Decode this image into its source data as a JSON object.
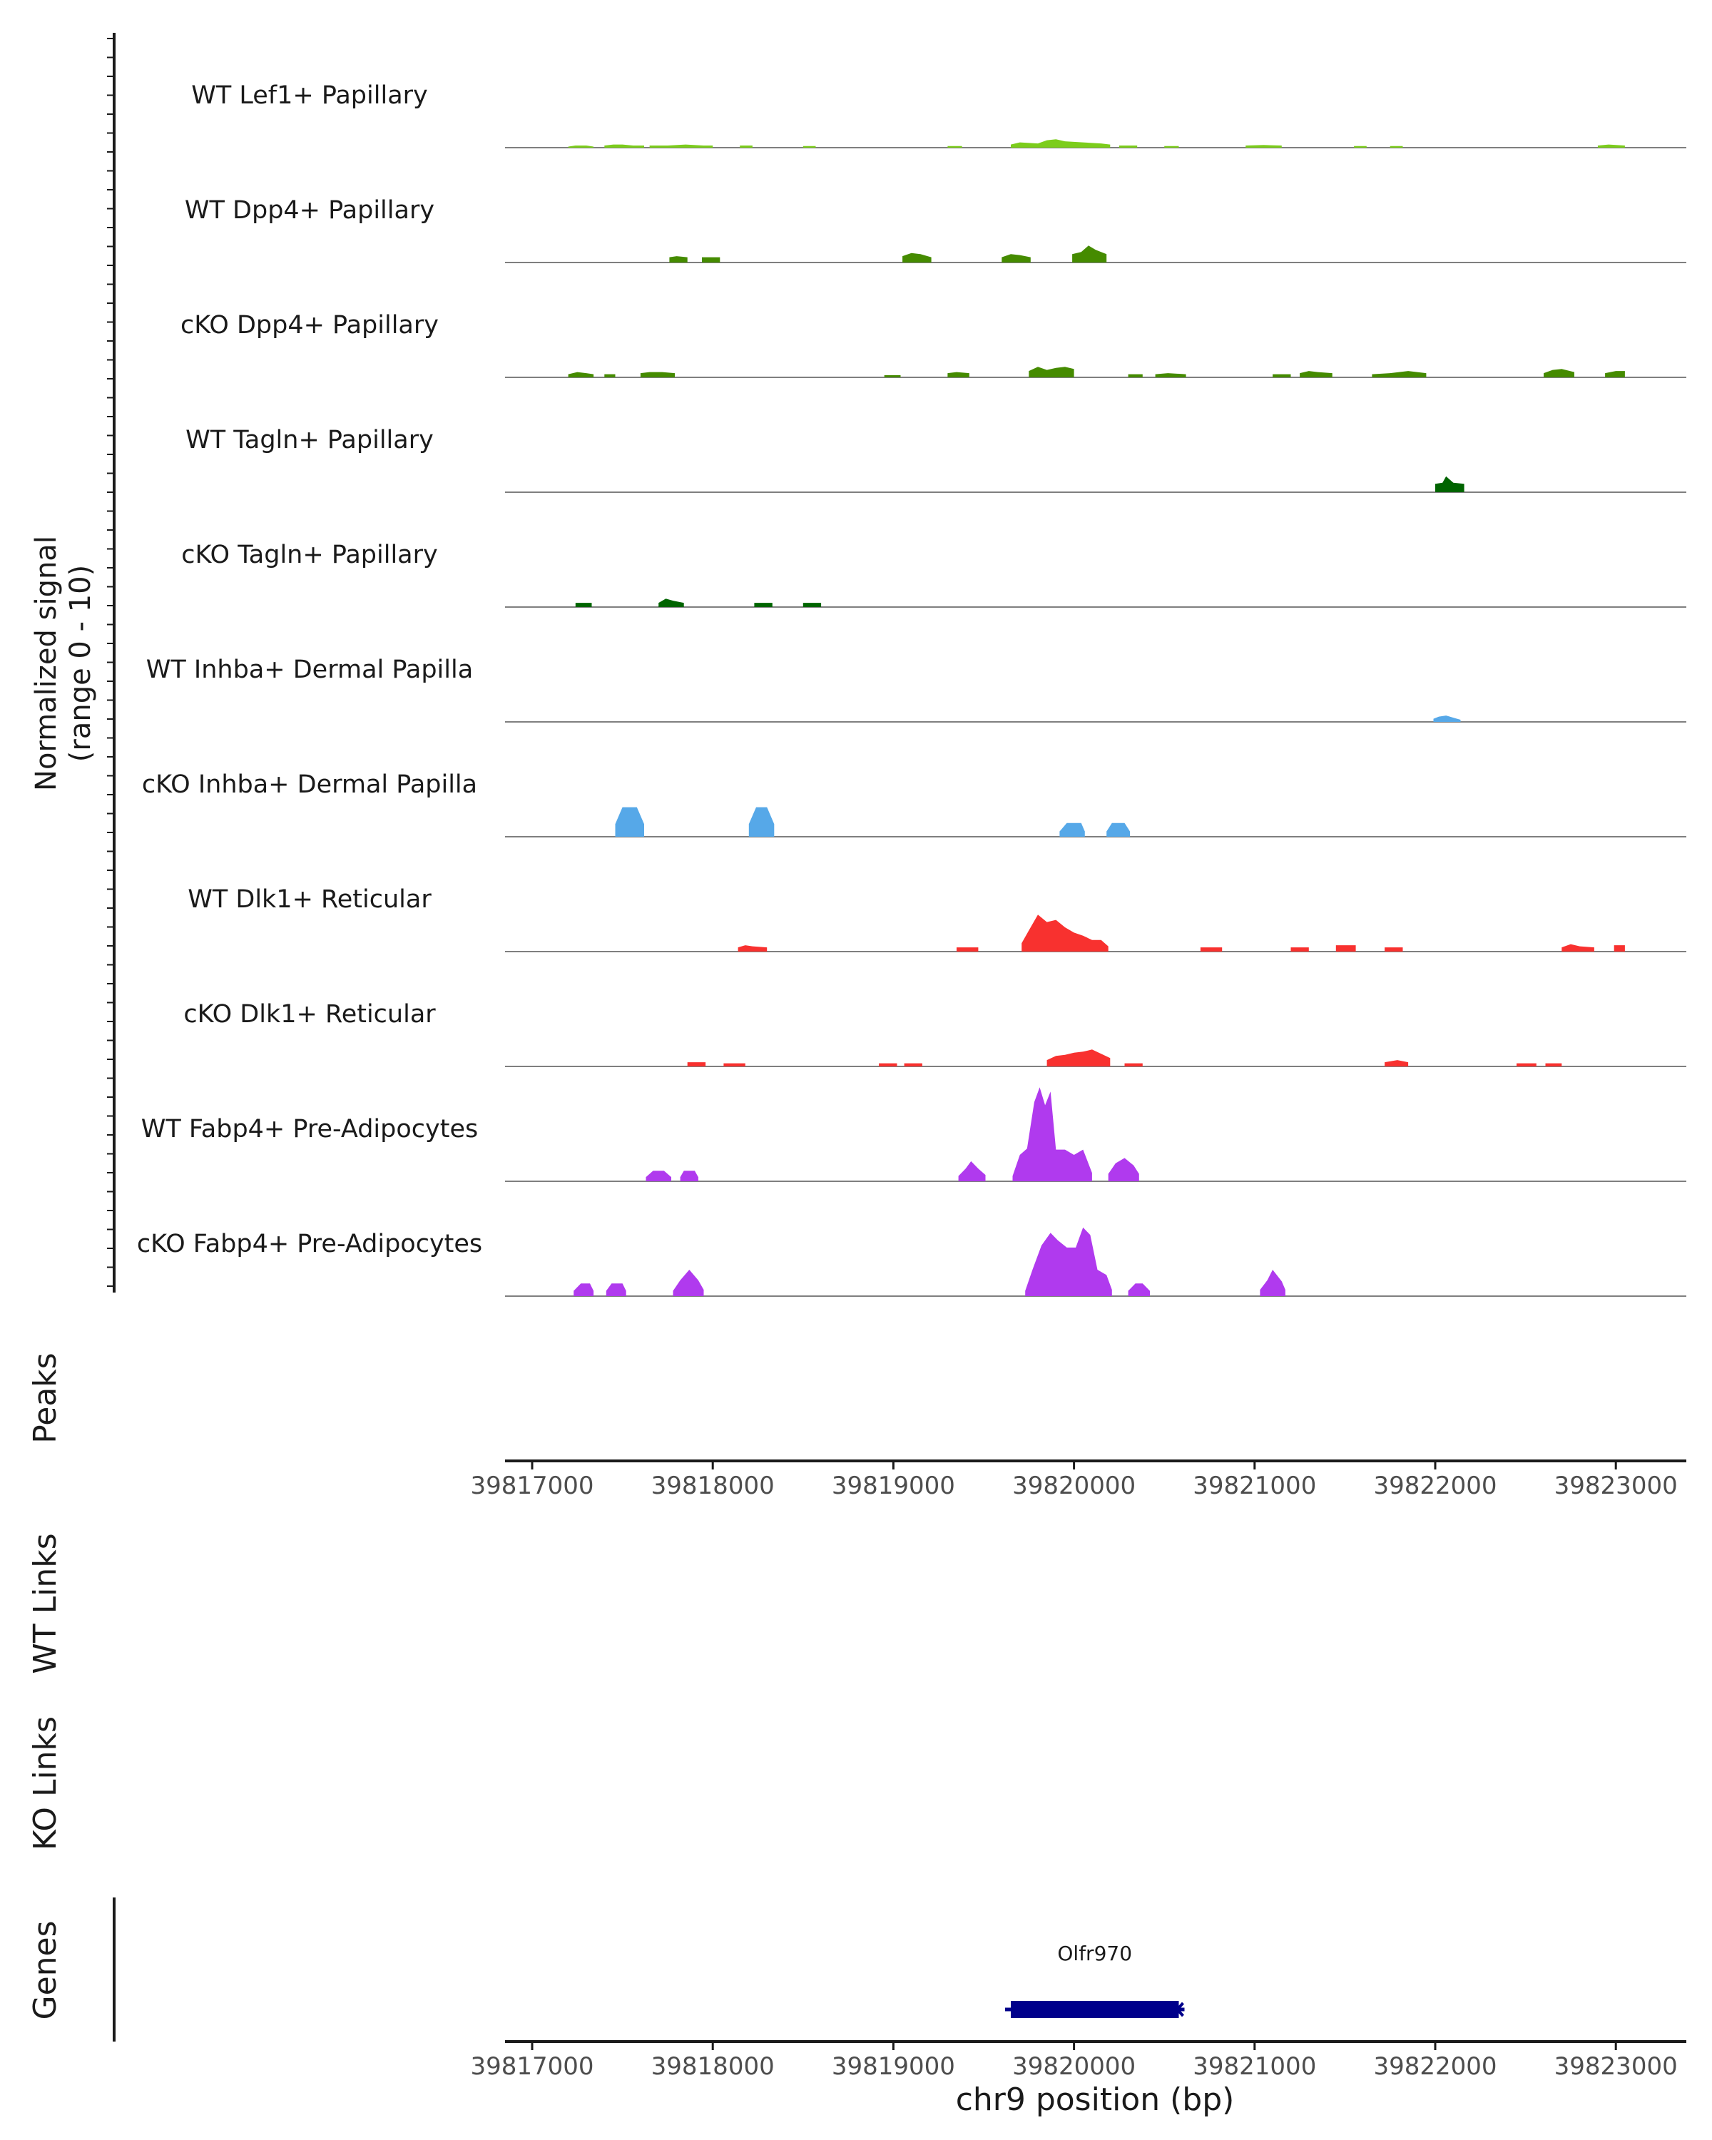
{
  "chart_data": {
    "type": "area",
    "chromosome": "chr9",
    "xlabel": "chr9 position (bp)",
    "xlim": [
      39816850,
      39823390
    ],
    "x_ticks": [
      39817000,
      39818000,
      39819000,
      39820000,
      39821000,
      39822000,
      39823000
    ],
    "x_tick_labels": [
      "39817000",
      "39818000",
      "39819000",
      "39820000",
      "39821000",
      "39822000",
      "39823000"
    ],
    "ylabel_line1": "Normalized signal",
    "ylabel_line2": "(range 0 - 10)",
    "ylim": [
      0,
      10
    ],
    "tracks": [
      {
        "name": "WT Lef1+ Papillary",
        "color": "#7CCD1C",
        "regions": [
          {
            "x": [
              39817200,
              39817240,
              39817300,
              39817340
            ],
            "y": [
              0.1,
              0.2,
              0.2,
              0.1
            ]
          },
          {
            "x": [
              39817400,
              39817450,
              39817500,
              39817560,
              39817620
            ],
            "y": [
              0.2,
              0.3,
              0.3,
              0.2,
              0.2
            ]
          },
          {
            "x": [
              39817650,
              39817750,
              39817850,
              39817950,
              39818000
            ],
            "y": [
              0.2,
              0.2,
              0.3,
              0.2,
              0.2
            ]
          },
          {
            "x": [
              39818150,
              39818220
            ],
            "y": [
              0.2,
              0.2
            ]
          },
          {
            "x": [
              39818500,
              39818570
            ],
            "y": [
              0.15,
              0.15
            ]
          },
          {
            "x": [
              39819300,
              39819380
            ],
            "y": [
              0.15,
              0.15
            ]
          },
          {
            "x": [
              39819650,
              39819700,
              39819800,
              39819850,
              39819900,
              39819950,
              39820050,
              39820150,
              39820200
            ],
            "y": [
              0.3,
              0.5,
              0.4,
              0.7,
              0.8,
              0.6,
              0.5,
              0.4,
              0.3
            ]
          },
          {
            "x": [
              39820250,
              39820350
            ],
            "y": [
              0.2,
              0.2
            ]
          },
          {
            "x": [
              39820500,
              39820580
            ],
            "y": [
              0.15,
              0.15
            ]
          },
          {
            "x": [
              39820950,
              39821050,
              39821150
            ],
            "y": [
              0.2,
              0.25,
              0.2
            ]
          },
          {
            "x": [
              39821550,
              39821620
            ],
            "y": [
              0.15,
              0.15
            ]
          },
          {
            "x": [
              39821750,
              39821820
            ],
            "y": [
              0.15,
              0.15
            ]
          },
          {
            "x": [
              39822900,
              39822960,
              39823050
            ],
            "y": [
              0.2,
              0.3,
              0.2
            ]
          }
        ]
      },
      {
        "name": "WT Dpp4+ Papillary",
        "color": "#458B00",
        "regions": [
          {
            "x": [
              39817760,
              39817800,
              39817860
            ],
            "y": [
              0.5,
              0.6,
              0.5
            ]
          },
          {
            "x": [
              39817940,
              39818040
            ],
            "y": [
              0.5,
              0.5
            ]
          },
          {
            "x": [
              39819050,
              39819100,
              39819150,
              39819210
            ],
            "y": [
              0.6,
              0.9,
              0.8,
              0.5
            ]
          },
          {
            "x": [
              39819600,
              39819650,
              39819700,
              39819760
            ],
            "y": [
              0.5,
              0.8,
              0.7,
              0.5
            ]
          },
          {
            "x": [
              39819990,
              39820040,
              39820080,
              39820120,
              39820180
            ],
            "y": [
              0.8,
              1.0,
              1.6,
              1.2,
              0.8
            ]
          }
        ]
      },
      {
        "name": "cKO Dpp4+ Papillary",
        "color": "#458B00",
        "regions": [
          {
            "x": [
              39817200,
              39817250,
              39817300,
              39817340
            ],
            "y": [
              0.3,
              0.5,
              0.4,
              0.3
            ]
          },
          {
            "x": [
              39817400,
              39817460
            ],
            "y": [
              0.3,
              0.3
            ]
          },
          {
            "x": [
              39817600,
              39817650,
              39817720,
              39817790
            ],
            "y": [
              0.4,
              0.5,
              0.5,
              0.4
            ]
          },
          {
            "x": [
              39818950,
              39819040
            ],
            "y": [
              0.2,
              0.2
            ]
          },
          {
            "x": [
              39819300,
              39819350,
              39819420
            ],
            "y": [
              0.4,
              0.5,
              0.4
            ]
          },
          {
            "x": [
              39819750,
              39819800,
              39819850,
              39819900,
              39819950,
              39820000
            ],
            "y": [
              0.6,
              1.0,
              0.7,
              0.9,
              1.0,
              0.8
            ]
          },
          {
            "x": [
              39820300,
              39820380
            ],
            "y": [
              0.3,
              0.3
            ]
          },
          {
            "x": [
              39820450,
              39820520,
              39820620
            ],
            "y": [
              0.3,
              0.4,
              0.3
            ]
          },
          {
            "x": [
              39821100,
              39821200
            ],
            "y": [
              0.3,
              0.3
            ]
          },
          {
            "x": [
              39821250,
              39821300,
              39821350,
              39821430
            ],
            "y": [
              0.4,
              0.6,
              0.5,
              0.4
            ]
          },
          {
            "x": [
              39821650,
              39821750,
              39821850,
              39821950
            ],
            "y": [
              0.3,
              0.4,
              0.6,
              0.4
            ]
          },
          {
            "x": [
              39822600,
              39822650,
              39822700,
              39822770
            ],
            "y": [
              0.4,
              0.7,
              0.8,
              0.5
            ]
          },
          {
            "x": [
              39822940,
              39823000,
              39823050
            ],
            "y": [
              0.4,
              0.6,
              0.6
            ]
          }
        ]
      },
      {
        "name": "WT Tagln+ Papillary",
        "color": "#006400",
        "regions": [
          {
            "x": [
              39822000,
              39822040,
              39822060,
              39822100,
              39822160
            ],
            "y": [
              0.8,
              0.9,
              1.5,
              0.9,
              0.8
            ]
          }
        ]
      },
      {
        "name": "cKO Tagln+ Papillary",
        "color": "#006400",
        "regions": [
          {
            "x": [
              39817240,
              39817330
            ],
            "y": [
              0.4,
              0.4
            ]
          },
          {
            "x": [
              39817700,
              39817740,
              39817780,
              39817840
            ],
            "y": [
              0.4,
              0.8,
              0.6,
              0.4
            ]
          },
          {
            "x": [
              39818230,
              39818330
            ],
            "y": [
              0.4,
              0.4
            ]
          },
          {
            "x": [
              39818500,
              39818600
            ],
            "y": [
              0.4,
              0.4
            ]
          }
        ]
      },
      {
        "name": "WT Inhba+ Dermal Papilla",
        "color": "#56A8E8",
        "regions": [
          {
            "x": [
              39821990,
              39822020,
              39822060,
              39822100,
              39822140
            ],
            "y": [
              0.3,
              0.5,
              0.6,
              0.4,
              0.2
            ]
          }
        ]
      },
      {
        "name": "cKO Inhba+ Dermal Papilla",
        "color": "#56A8E8",
        "regions": [
          {
            "x": [
              39817460,
              39817500,
              39817580,
              39817620
            ],
            "y": [
              1.2,
              2.8,
              2.8,
              1.2
            ]
          },
          {
            "x": [
              39818200,
              39818240,
              39818300,
              39818340
            ],
            "y": [
              1.2,
              2.8,
              2.8,
              1.2
            ]
          },
          {
            "x": [
              39819920,
              39819960,
              39820040,
              39820060
            ],
            "y": [
              0.5,
              1.3,
              1.3,
              0.5
            ]
          },
          {
            "x": [
              39820180,
              39820210,
              39820280,
              39820310
            ],
            "y": [
              0.5,
              1.3,
              1.3,
              0.5
            ]
          }
        ]
      },
      {
        "name": "WT Dlk1+ Reticular",
        "color": "#F8312F",
        "regions": [
          {
            "x": [
              39818140,
              39818180,
              39818220,
              39818300
            ],
            "y": [
              0.4,
              0.6,
              0.5,
              0.4
            ]
          },
          {
            "x": [
              39819350,
              39819470
            ],
            "y": [
              0.4,
              0.4
            ]
          },
          {
            "x": [
              39819710,
              39819750,
              39819800,
              39819850,
              39819900,
              39819950,
              39820000,
              39820050,
              39820100,
              39820150,
              39820190
            ],
            "y": [
              0.8,
              2.0,
              3.5,
              2.8,
              3.0,
              2.3,
              1.8,
              1.5,
              1.1,
              1.1,
              0.5
            ]
          },
          {
            "x": [
              39820700,
              39820820
            ],
            "y": [
              0.4,
              0.4
            ]
          },
          {
            "x": [
              39821200,
              39821300
            ],
            "y": [
              0.4,
              0.4
            ]
          },
          {
            "x": [
              39821450,
              39821560
            ],
            "y": [
              0.6,
              0.6
            ]
          },
          {
            "x": [
              39821720,
              39821820
            ],
            "y": [
              0.4,
              0.4
            ]
          },
          {
            "x": [
              39822700,
              39822750,
              39822800,
              39822880
            ],
            "y": [
              0.4,
              0.7,
              0.5,
              0.4
            ]
          },
          {
            "x": [
              39822990,
              39823050
            ],
            "y": [
              0.6,
              0.6
            ]
          }
        ]
      },
      {
        "name": "cKO Dlk1+ Reticular",
        "color": "#F8312F",
        "regions": [
          {
            "x": [
              39817860,
              39817960
            ],
            "y": [
              0.4,
              0.4
            ]
          },
          {
            "x": [
              39818060,
              39818180
            ],
            "y": [
              0.3,
              0.3
            ]
          },
          {
            "x": [
              39818920,
              39819020
            ],
            "y": [
              0.3,
              0.3
            ]
          },
          {
            "x": [
              39819060,
              39819160
            ],
            "y": [
              0.3,
              0.3
            ]
          },
          {
            "x": [
              39819850,
              39819900,
              39819950,
              39820000,
              39820050,
              39820100,
              39820150,
              39820200
            ],
            "y": [
              0.6,
              1.0,
              1.1,
              1.3,
              1.4,
              1.6,
              1.2,
              0.8
            ]
          },
          {
            "x": [
              39820280,
              39820380
            ],
            "y": [
              0.3,
              0.3
            ]
          },
          {
            "x": [
              39821720,
              39821790,
              39821850
            ],
            "y": [
              0.4,
              0.6,
              0.4
            ]
          },
          {
            "x": [
              39822450,
              39822560
            ],
            "y": [
              0.3,
              0.3
            ]
          },
          {
            "x": [
              39822610,
              39822700
            ],
            "y": [
              0.3,
              0.3
            ]
          }
        ]
      },
      {
        "name": "WT Fabp4+ Pre-Adipocytes",
        "color": "#B03AEE",
        "regions": [
          {
            "x": [
              39817630,
              39817670,
              39817730,
              39817770
            ],
            "y": [
              0.4,
              1.0,
              1.0,
              0.4
            ]
          },
          {
            "x": [
              39817820,
              39817840,
              39817900,
              39817920
            ],
            "y": [
              0.4,
              1.0,
              1.0,
              0.4
            ]
          },
          {
            "x": [
              39819360,
              39819400,
              39819430,
              39819470,
              39819510
            ],
            "y": [
              0.5,
              1.2,
              1.9,
              1.2,
              0.6
            ]
          },
          {
            "x": [
              39819660,
              39819700,
              39819740,
              39819780,
              39819810,
              39819840,
              39819870,
              39819900,
              39819950,
              39820000,
              39820050,
              39820100
            ],
            "y": [
              0.5,
              2.5,
              3.1,
              7.5,
              8.9,
              7.2,
              8.5,
              3.0,
              3.0,
              2.5,
              3.0,
              0.8
            ]
          },
          {
            "x": [
              39820190,
              39820230,
              39820280,
              39820330,
              39820360
            ],
            "y": [
              0.7,
              1.7,
              2.2,
              1.5,
              0.7
            ]
          }
        ]
      },
      {
        "name": "cKO Fabp4+ Pre-Adipocytes",
        "color": "#B03AEE",
        "regions": [
          {
            "x": [
              39817230,
              39817270,
              39817320,
              39817340
            ],
            "y": [
              0.5,
              1.2,
              1.2,
              0.5
            ]
          },
          {
            "x": [
              39817410,
              39817440,
              39817500,
              39817520
            ],
            "y": [
              0.5,
              1.2,
              1.2,
              0.5
            ]
          },
          {
            "x": [
              39817780,
              39817820,
              39817870,
              39817920,
              39817950
            ],
            "y": [
              0.5,
              1.5,
              2.5,
              1.5,
              0.6
            ]
          },
          {
            "x": [
              39819730,
              39819770,
              39819820,
              39819870,
              39819910,
              39819960,
              39820010,
              39820050,
              39820090,
              39820130,
              39820180,
              39820210
            ],
            "y": [
              0.5,
              2.5,
              4.8,
              6.0,
              5.3,
              4.6,
              4.6,
              6.5,
              5.8,
              2.5,
              2.0,
              0.6
            ]
          },
          {
            "x": [
              39820300,
              39820340,
              39820380,
              39820420
            ],
            "y": [
              0.5,
              1.2,
              1.2,
              0.5
            ]
          },
          {
            "x": [
              39821030,
              39821070,
              39821100,
              39821150,
              39821170
            ],
            "y": [
              0.6,
              1.5,
              2.5,
              1.4,
              0.6
            ]
          }
        ]
      }
    ],
    "panels": {
      "peaks_label": "Peaks",
      "wt_links_label": "WT Links",
      "ko_links_label": "KO Links",
      "genes_label": "Genes"
    },
    "genes": [
      {
        "name": "Olfr970",
        "start": 39819650,
        "end": 39820580,
        "strand": "-",
        "color": "#00008B"
      }
    ]
  }
}
